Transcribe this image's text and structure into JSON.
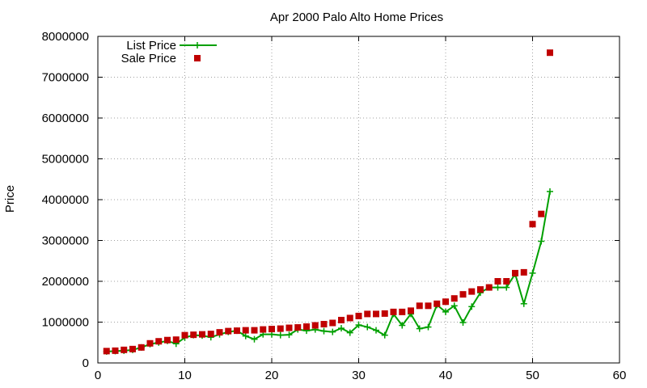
{
  "chart_data": {
    "type": "line",
    "title": "Apr 2000 Palo Alto Home Prices",
    "xlabel": "",
    "ylabel": "Price",
    "xlim": [
      0,
      60
    ],
    "ylim": [
      0,
      8000000
    ],
    "x_ticks": [
      0,
      10,
      20,
      30,
      40,
      50,
      60
    ],
    "y_ticks": [
      0,
      1000000,
      2000000,
      3000000,
      4000000,
      5000000,
      6000000,
      7000000,
      8000000
    ],
    "grid": true,
    "legend_position": "top-left",
    "series": [
      {
        "name": "List Price",
        "style": "linespoints",
        "marker": "plus",
        "color": "#00a000",
        "x": [
          1,
          2,
          3,
          4,
          5,
          6,
          7,
          8,
          9,
          10,
          11,
          12,
          13,
          14,
          15,
          16,
          17,
          18,
          19,
          20,
          21,
          22,
          23,
          24,
          25,
          26,
          27,
          28,
          29,
          30,
          31,
          32,
          33,
          34,
          35,
          36,
          37,
          38,
          39,
          40,
          41,
          42,
          43,
          44,
          45,
          46,
          47,
          48,
          49,
          50,
          51,
          52
        ],
        "y": [
          280000,
          290000,
          300000,
          320000,
          380000,
          460000,
          500000,
          540000,
          470000,
          620000,
          680000,
          670000,
          630000,
          700000,
          760000,
          790000,
          660000,
          580000,
          700000,
          700000,
          680000,
          690000,
          820000,
          790000,
          820000,
          780000,
          760000,
          850000,
          740000,
          930000,
          880000,
          800000,
          680000,
          1200000,
          920000,
          1200000,
          840000,
          880000,
          1420000,
          1250000,
          1400000,
          990000,
          1380000,
          1720000,
          1850000,
          1850000,
          1850000,
          2180000,
          1450000,
          2200000,
          2980000,
          4200000
        ]
      },
      {
        "name": "Sale Price",
        "style": "points",
        "marker": "square",
        "color": "#c00000",
        "x": [
          1,
          2,
          3,
          4,
          5,
          6,
          7,
          8,
          9,
          10,
          11,
          12,
          13,
          14,
          15,
          16,
          17,
          18,
          19,
          20,
          21,
          22,
          23,
          24,
          25,
          26,
          27,
          28,
          29,
          30,
          31,
          32,
          33,
          34,
          35,
          36,
          37,
          38,
          39,
          40,
          41,
          42,
          43,
          44,
          45,
          46,
          47,
          48,
          49,
          50,
          51,
          52
        ],
        "y": [
          290000,
          300000,
          320000,
          340000,
          380000,
          480000,
          530000,
          560000,
          570000,
          680000,
          690000,
          700000,
          710000,
          750000,
          780000,
          790000,
          800000,
          800000,
          820000,
          830000,
          840000,
          860000,
          870000,
          890000,
          920000,
          950000,
          980000,
          1050000,
          1100000,
          1150000,
          1200000,
          1200000,
          1210000,
          1250000,
          1250000,
          1280000,
          1400000,
          1400000,
          1450000,
          1500000,
          1580000,
          1680000,
          1750000,
          1800000,
          1850000,
          2000000,
          2000000,
          2200000,
          2220000,
          3400000,
          3650000,
          7600000
        ]
      }
    ]
  }
}
